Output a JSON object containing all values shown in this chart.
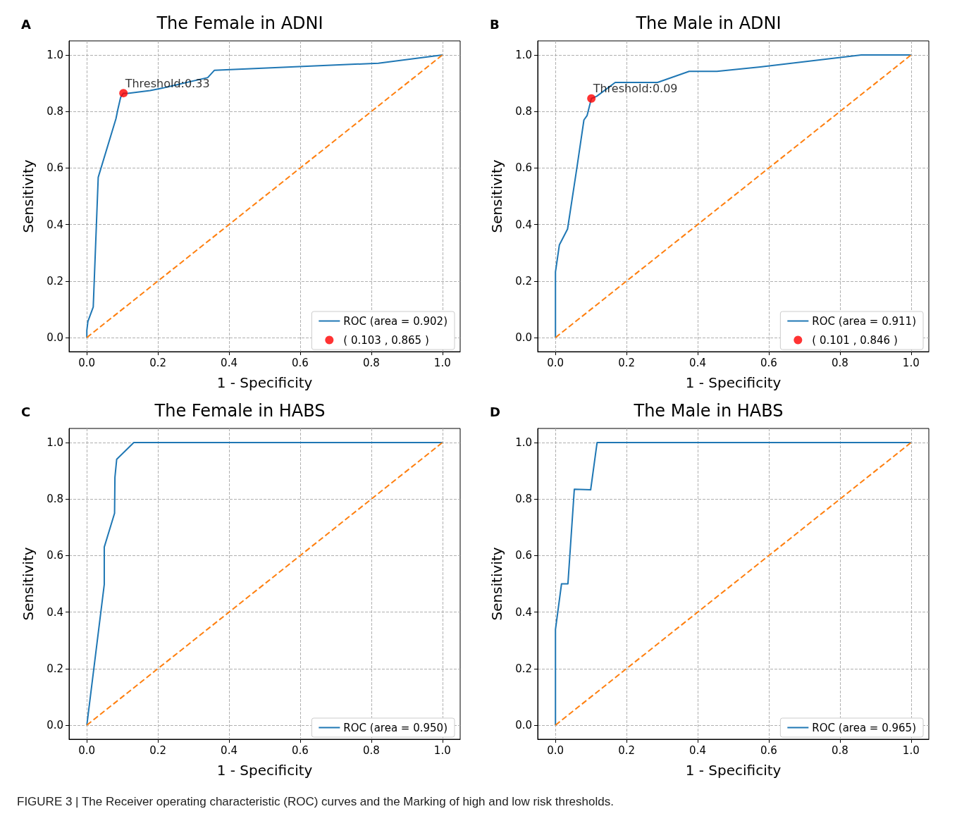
{
  "chart_data": [
    {
      "type": "line",
      "title": "The Female in ADNI",
      "xlabel": "1 - Specificity",
      "ylabel": "Sensitivity",
      "annotations": [
        "A",
        {
          "text": "Threshold:0.33",
          "x": 0.103,
          "y": 0.865
        }
      ],
      "xlim": [
        -0.05,
        1.05
      ],
      "ylim": [
        -0.05,
        1.05
      ],
      "xticks": [
        {
          "value": 0,
          "label": "0.0"
        },
        {
          "value": 0.2,
          "label": "0.2"
        },
        {
          "value": 0.4,
          "label": "0.4"
        },
        {
          "value": 0.6,
          "label": "0.6"
        },
        {
          "value": 0.8,
          "label": "0.8"
        },
        {
          "value": 1,
          "label": "1.0"
        }
      ],
      "yticks": [
        {
          "value": 0,
          "label": "0.0"
        },
        {
          "value": 0.2,
          "label": "0.2"
        },
        {
          "value": 0.4,
          "label": "0.4"
        },
        {
          "value": 0.6,
          "label": "0.6"
        },
        {
          "value": 0.8,
          "label": "0.8"
        },
        {
          "value": 1,
          "label": "1.0"
        }
      ],
      "grid": true,
      "legend": "bottom right",
      "series": [
        {
          "name": "ROC (area = 0.902)",
          "type": "line",
          "color": "#1f77b4",
          "x": [
            0,
            0,
            0.003,
            0.018,
            0.032,
            0.082,
            0.087,
            0.095,
            0.103,
            0.115,
            0.178,
            0.21,
            0.34,
            0.359,
            0.82,
            1
          ],
          "values": [
            0,
            0.025,
            0.057,
            0.108,
            0.567,
            0.775,
            0.806,
            0.85,
            0.865,
            0.864,
            0.874,
            0.882,
            0.92,
            0.946,
            0.971,
            1
          ]
        },
        {
          "name": "( 0.103 , 0.865 )",
          "type": "scatter",
          "color": "#ff0000",
          "x": [
            0.103
          ],
          "values": [
            0.865
          ]
        },
        {
          "type": "line",
          "color": "#ff7f0e",
          "line_style": "dashed",
          "x": [
            0,
            1
          ],
          "values": [
            0,
            1
          ]
        }
      ]
    },
    {
      "type": "line",
      "title": "The Male in ADNI",
      "xlabel": "1 - Specificity",
      "ylabel": "Sensitivity",
      "annotations": [
        "B",
        {
          "text": "Threshold:0.09",
          "x": 0.101,
          "y": 0.846
        }
      ],
      "xlim": [
        -0.05,
        1.05
      ],
      "ylim": [
        -0.05,
        1.05
      ],
      "xticks": [
        {
          "value": 0,
          "label": "0.0"
        },
        {
          "value": 0.2,
          "label": "0.2"
        },
        {
          "value": 0.4,
          "label": "0.4"
        },
        {
          "value": 0.6,
          "label": "0.6"
        },
        {
          "value": 0.8,
          "label": "0.8"
        },
        {
          "value": 1,
          "label": "1.0"
        }
      ],
      "yticks": [
        {
          "value": 0,
          "label": "0.0"
        },
        {
          "value": 0.2,
          "label": "0.2"
        },
        {
          "value": 0.4,
          "label": "0.4"
        },
        {
          "value": 0.6,
          "label": "0.6"
        },
        {
          "value": 0.8,
          "label": "0.8"
        },
        {
          "value": 1,
          "label": "1.0"
        }
      ],
      "grid": true,
      "legend": "bottom right",
      "series": [
        {
          "name": "ROC (area = 0.911)",
          "type": "line",
          "color": "#1f77b4",
          "x": [
            0,
            0,
            0.011,
            0.034,
            0.06,
            0.08,
            0.089,
            0.101,
            0.116,
            0.168,
            0.287,
            0.376,
            0.454,
            0.576,
            0.86,
            1
          ],
          "values": [
            0,
            0.232,
            0.328,
            0.384,
            0.599,
            0.77,
            0.786,
            0.846,
            0.854,
            0.903,
            0.903,
            0.942,
            0.942,
            0.958,
            1,
            1
          ]
        },
        {
          "name": "( 0.101 , 0.846 )",
          "type": "scatter",
          "color": "#ff0000",
          "x": [
            0.101
          ],
          "values": [
            0.846
          ]
        },
        {
          "type": "line",
          "color": "#ff7f0e",
          "line_style": "dashed",
          "x": [
            0,
            1
          ],
          "values": [
            0,
            1
          ]
        }
      ]
    },
    {
      "type": "line",
      "title": "The Female in HABS",
      "xlabel": "1 - Specificity",
      "ylabel": "Sensitivity",
      "annotations": [
        "C"
      ],
      "xlim": [
        -0.05,
        1.05
      ],
      "ylim": [
        -0.05,
        1.05
      ],
      "xticks": [
        {
          "value": 0,
          "label": "0.0"
        },
        {
          "value": 0.2,
          "label": "0.2"
        },
        {
          "value": 0.4,
          "label": "0.4"
        },
        {
          "value": 0.6,
          "label": "0.6"
        },
        {
          "value": 0.8,
          "label": "0.8"
        },
        {
          "value": 1,
          "label": "1.0"
        }
      ],
      "yticks": [
        {
          "value": 0,
          "label": "0.0"
        },
        {
          "value": 0.2,
          "label": "0.2"
        },
        {
          "value": 0.4,
          "label": "0.4"
        },
        {
          "value": 0.6,
          "label": "0.6"
        },
        {
          "value": 0.8,
          "label": "0.8"
        },
        {
          "value": 1,
          "label": "1.0"
        }
      ],
      "grid": true,
      "legend": "bottom right",
      "series": [
        {
          "name": "ROC (area = 0.950)",
          "type": "line",
          "color": "#1f77b4",
          "x": [
            0,
            0.049,
            0.049,
            0.078,
            0.079,
            0.084,
            0.132,
            1
          ],
          "values": [
            0,
            0.498,
            0.63,
            0.75,
            0.877,
            0.941,
            1,
            1
          ]
        },
        {
          "type": "line",
          "color": "#ff7f0e",
          "line_style": "dashed",
          "x": [
            0,
            1
          ],
          "values": [
            0,
            1
          ]
        }
      ]
    },
    {
      "type": "line",
      "title": "The Male in HABS",
      "xlabel": "1 - Specificity",
      "ylabel": "Sensitivity",
      "annotations": [
        "D",
        "FIGURE 3 | The Receiver operating characteristic (ROC) curves and the Marking of high and low risk thresholds."
      ],
      "xlim": [
        -0.05,
        1.05
      ],
      "ylim": [
        -0.05,
        1.05
      ],
      "xticks": [
        {
          "value": 0,
          "label": "0.0"
        },
        {
          "value": 0.2,
          "label": "0.2"
        },
        {
          "value": 0.4,
          "label": "0.4"
        },
        {
          "value": 0.6,
          "label": "0.6"
        },
        {
          "value": 0.8,
          "label": "0.8"
        },
        {
          "value": 1,
          "label": "1.0"
        }
      ],
      "yticks": [
        {
          "value": 0,
          "label": "0.0"
        },
        {
          "value": 0.2,
          "label": "0.2"
        },
        {
          "value": 0.4,
          "label": "0.4"
        },
        {
          "value": 0.6,
          "label": "0.6"
        },
        {
          "value": 0.8,
          "label": "0.8"
        },
        {
          "value": 1,
          "label": "1.0"
        }
      ],
      "grid": true,
      "legend": "bottom right",
      "series": [
        {
          "name": "ROC (area = 0.965)",
          "type": "line",
          "color": "#1f77b4",
          "x": [
            0,
            0,
            0.017,
            0.035,
            0.053,
            0.099,
            0.117,
            1
          ],
          "values": [
            0,
            0.339,
            0.5,
            0.5,
            0.835,
            0.833,
            1,
            1
          ]
        },
        {
          "type": "line",
          "color": "#ff7f0e",
          "line_style": "dashed",
          "x": [
            0,
            1
          ],
          "values": [
            0,
            1
          ]
        }
      ]
    }
  ]
}
